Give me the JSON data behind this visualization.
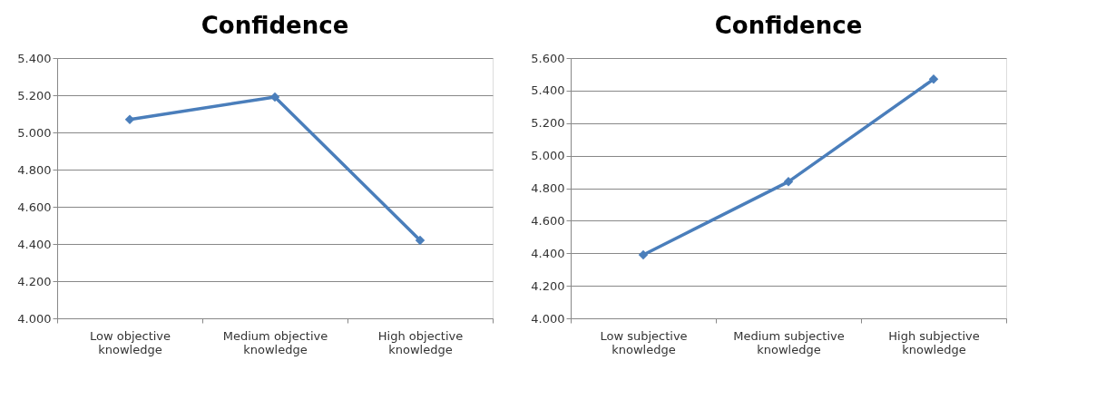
{
  "chart_data": [
    {
      "type": "line",
      "title": "Confidence",
      "categories": [
        "Low objective knowledge",
        "Medium objective knowledge",
        "High objective knowledge"
      ],
      "series": [
        {
          "color": "#4a7ebb",
          "values": [
            5.07,
            5.19,
            4.42
          ]
        }
      ],
      "ylim": [
        4.0,
        5.4
      ],
      "yticks": [
        {
          "value": 4.0,
          "label": "4.000"
        },
        {
          "value": 4.2,
          "label": "4.200"
        },
        {
          "value": 4.4,
          "label": "4.400"
        },
        {
          "value": 4.6,
          "label": "4.600"
        },
        {
          "value": 4.8,
          "label": "4.800"
        },
        {
          "value": 5.0,
          "label": "5.000"
        },
        {
          "value": 5.2,
          "label": "5.200"
        },
        {
          "value": 5.4,
          "label": "5.400"
        }
      ],
      "grid": "y",
      "marker": "diamond",
      "line_style": "solid"
    },
    {
      "type": "line",
      "title": "Confidence",
      "categories": [
        "Low subjective knowledge",
        "Medium subjective knowledge",
        "High subjective knowledge"
      ],
      "series": [
        {
          "color": "#4a7ebb",
          "values": [
            4.39,
            4.84,
            5.47
          ]
        }
      ],
      "ylim": [
        4.0,
        5.6
      ],
      "yticks": [
        {
          "value": 4.0,
          "label": "4.000"
        },
        {
          "value": 4.2,
          "label": "4.200"
        },
        {
          "value": 4.4,
          "label": "4.400"
        },
        {
          "value": 4.6,
          "label": "4.600"
        },
        {
          "value": 4.8,
          "label": "4.800"
        },
        {
          "value": 5.0,
          "label": "5.000"
        },
        {
          "value": 5.2,
          "label": "5.200"
        },
        {
          "value": 5.4,
          "label": "5.400"
        },
        {
          "value": 5.6,
          "label": "5.600"
        }
      ],
      "grid": "y",
      "marker": "diamond",
      "line_style": "solid"
    }
  ]
}
